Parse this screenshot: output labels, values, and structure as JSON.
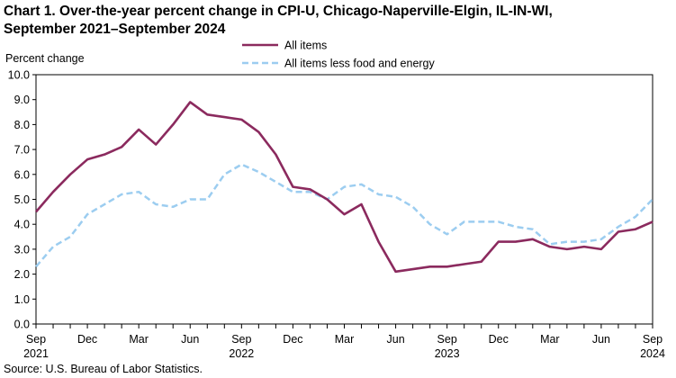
{
  "chart_data": {
    "type": "line",
    "title_line1": "Chart 1. Over-the-year percent change in CPI-U, Chicago-Naperville-Elgin,  IL-IN-WI,",
    "title_line2": "September 2021–September 2024",
    "ylabel": "Percent change",
    "xlabel": "",
    "ylim": [
      0,
      10
    ],
    "yticks": [
      "0.0",
      "1.0",
      "2.0",
      "3.0",
      "4.0",
      "5.0",
      "6.0",
      "7.0",
      "8.0",
      "9.0",
      "10.0"
    ],
    "x": [
      "Sep 2021",
      "Oct 2021",
      "Nov 2021",
      "Dec 2021",
      "Jan 2022",
      "Feb 2022",
      "Mar 2022",
      "Apr 2022",
      "May 2022",
      "Jun 2022",
      "Jul 2022",
      "Aug 2022",
      "Sep 2022",
      "Oct 2022",
      "Nov 2022",
      "Dec 2022",
      "Jan 2023",
      "Feb 2023",
      "Mar 2023",
      "Apr 2023",
      "May 2023",
      "Jun 2023",
      "Jul 2023",
      "Aug 2023",
      "Sep 2023",
      "Oct 2023",
      "Nov 2023",
      "Dec 2023",
      "Jan 2024",
      "Feb 2024",
      "Mar 2024",
      "Apr 2024",
      "May 2024",
      "Jun 2024",
      "Jul 2024",
      "Aug 2024",
      "Sep 2024"
    ],
    "xtick_labels": [
      {
        "index": 0,
        "month": "Sep",
        "year": "2021"
      },
      {
        "index": 3,
        "month": "Dec",
        "year": ""
      },
      {
        "index": 6,
        "month": "Mar",
        "year": ""
      },
      {
        "index": 9,
        "month": "Jun",
        "year": ""
      },
      {
        "index": 12,
        "month": "Sep",
        "year": "2022"
      },
      {
        "index": 15,
        "month": "Dec",
        "year": ""
      },
      {
        "index": 18,
        "month": "Mar",
        "year": ""
      },
      {
        "index": 21,
        "month": "Jun",
        "year": ""
      },
      {
        "index": 24,
        "month": "Sep",
        "year": "2023"
      },
      {
        "index": 27,
        "month": "Dec",
        "year": ""
      },
      {
        "index": 30,
        "month": "Mar",
        "year": ""
      },
      {
        "index": 33,
        "month": "Jun",
        "year": ""
      },
      {
        "index": 36,
        "month": "Sep",
        "year": "2024"
      }
    ],
    "series": [
      {
        "name": "All items",
        "color": "#8b2a5e",
        "style": "solid",
        "values": [
          4.5,
          5.3,
          6.0,
          6.6,
          6.8,
          7.1,
          7.8,
          7.2,
          8.0,
          8.9,
          8.4,
          8.3,
          8.2,
          7.7,
          6.8,
          5.5,
          5.4,
          5.0,
          4.4,
          4.8,
          3.3,
          2.1,
          2.2,
          2.3,
          2.3,
          2.4,
          2.5,
          3.3,
          3.3,
          3.4,
          3.1,
          3.0,
          3.1,
          3.0,
          3.7,
          3.8,
          4.1
        ]
      },
      {
        "name": "All items less food and energy",
        "color": "#9ccdf0",
        "style": "dashed",
        "values": [
          2.3,
          3.1,
          3.5,
          4.4,
          4.8,
          5.2,
          5.3,
          4.8,
          4.7,
          5.0,
          5.0,
          6.0,
          6.4,
          6.1,
          5.7,
          5.3,
          5.3,
          5.0,
          5.5,
          5.6,
          5.2,
          5.1,
          4.7,
          4.0,
          3.6,
          4.1,
          4.1,
          4.1,
          3.9,
          3.8,
          3.2,
          3.3,
          3.3,
          3.4,
          3.9,
          4.3,
          5.0
        ]
      }
    ],
    "legend": "top-center",
    "grid": false
  },
  "source": "Source: U.S. Bureau  of Labor Statistics."
}
